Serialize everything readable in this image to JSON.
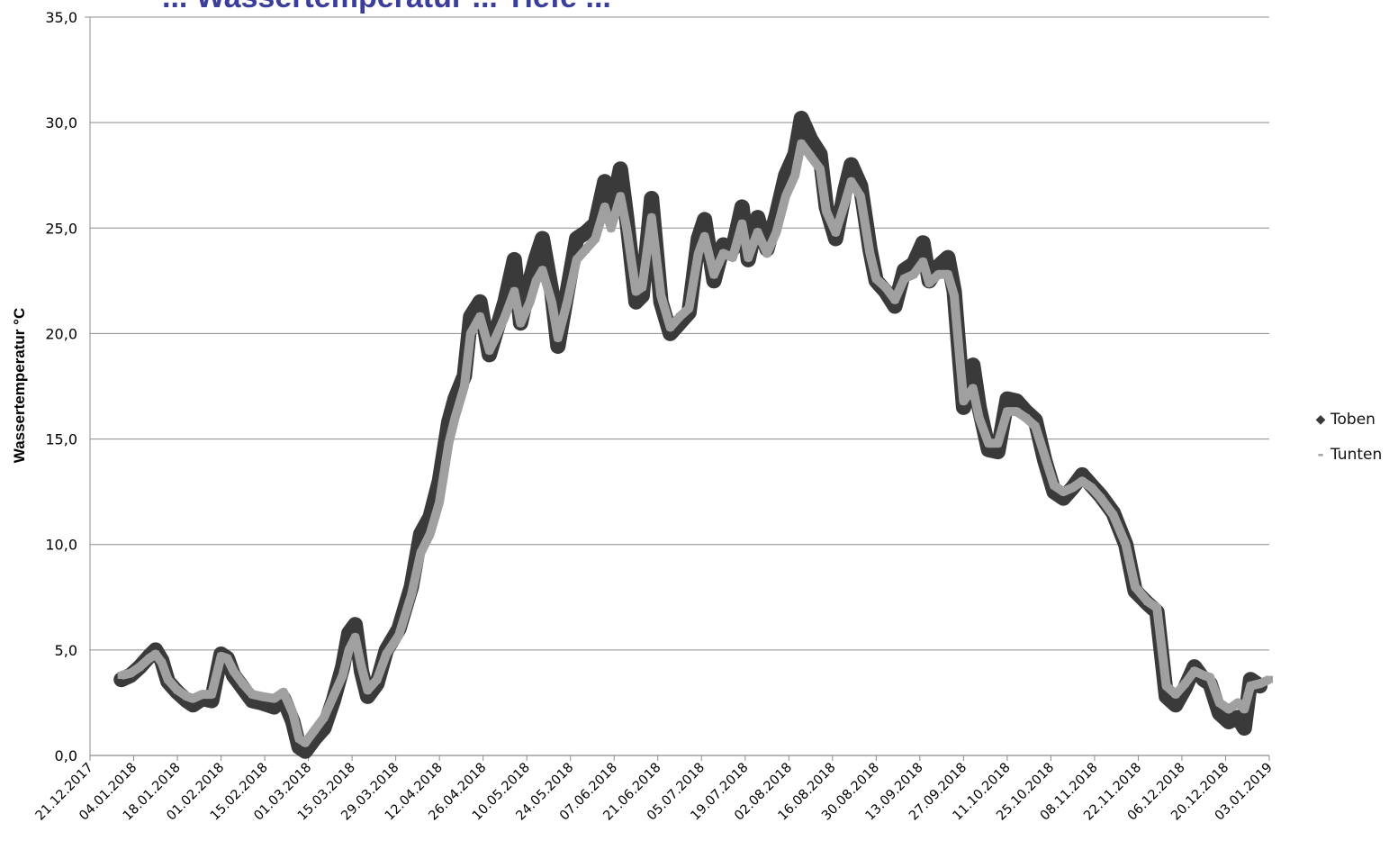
{
  "chart_data": {
    "type": "line",
    "title": "... Wassertemperatur ... Tiefe ...",
    "ylabel": "Wassertemperatur °C",
    "xlabel": "",
    "ylim": [
      0,
      35
    ],
    "yticks": [
      "0,0",
      "5,0",
      "10,0",
      "15,0",
      "20,0",
      "25,0",
      "30,0",
      "35,0"
    ],
    "xticks": [
      "21.12.2017",
      "04.01.2018",
      "18.01.2018",
      "01.02.2018",
      "15.02.2018",
      "01.03.2018",
      "15.03.2018",
      "29.03.2018",
      "12.04.2018",
      "26.04.2018",
      "10.05.2018",
      "24.05.2018",
      "07.06.2018",
      "21.06.2018",
      "05.07.2018",
      "19.07.2018",
      "02.08.2018",
      "16.08.2018",
      "30.08.2018",
      "13.09.2018",
      "27.09.2018",
      "11.10.2018",
      "25.10.2018",
      "08.11.2018",
      "22.11.2018",
      "06.12.2018",
      "20.12.2018",
      "03.01.2019"
    ],
    "x_range": [
      "2017-12-21",
      "2019-01-03"
    ],
    "grid": "horizontal",
    "legend_position": "right",
    "series": [
      {
        "name": "Toben",
        "color": "#3a3a3a",
        "marker": "diamond",
        "points": [
          [
            "2017-12-31",
            3.6
          ],
          [
            "2018-01-03",
            3.8
          ],
          [
            "2018-01-06",
            4.2
          ],
          [
            "2018-01-09",
            4.7
          ],
          [
            "2018-01-11",
            5.0
          ],
          [
            "2018-01-13",
            4.5
          ],
          [
            "2018-01-15",
            3.5
          ],
          [
            "2018-01-18",
            3.0
          ],
          [
            "2018-01-21",
            2.6
          ],
          [
            "2018-01-23",
            2.4
          ],
          [
            "2018-01-26",
            2.7
          ],
          [
            "2018-01-29",
            2.6
          ],
          [
            "2018-02-01",
            4.8
          ],
          [
            "2018-02-03",
            4.6
          ],
          [
            "2018-02-05",
            3.8
          ],
          [
            "2018-02-08",
            3.2
          ],
          [
            "2018-02-11",
            2.6
          ],
          [
            "2018-02-14",
            2.5
          ],
          [
            "2018-02-18",
            2.3
          ],
          [
            "2018-02-21",
            2.7
          ],
          [
            "2018-02-24",
            1.6
          ],
          [
            "2018-02-26",
            0.4
          ],
          [
            "2018-02-28",
            0.2
          ],
          [
            "2018-03-03",
            0.8
          ],
          [
            "2018-03-06",
            1.3
          ],
          [
            "2018-03-09",
            2.6
          ],
          [
            "2018-03-12",
            4.2
          ],
          [
            "2018-03-14",
            5.8
          ],
          [
            "2018-03-16",
            6.2
          ],
          [
            "2018-03-18",
            4.0
          ],
          [
            "2018-03-20",
            2.8
          ],
          [
            "2018-03-23",
            3.4
          ],
          [
            "2018-03-26",
            5.0
          ],
          [
            "2018-03-30",
            6.0
          ],
          [
            "2018-04-03",
            8.0
          ],
          [
            "2018-04-06",
            10.5
          ],
          [
            "2018-04-09",
            11.3
          ],
          [
            "2018-04-12",
            13.0
          ],
          [
            "2018-04-15",
            15.8
          ],
          [
            "2018-04-17",
            16.9
          ],
          [
            "2018-04-20",
            18.0
          ],
          [
            "2018-04-22",
            20.8
          ],
          [
            "2018-04-25",
            21.5
          ],
          [
            "2018-04-28",
            19.0
          ],
          [
            "2018-04-30",
            20.0
          ],
          [
            "2018-05-03",
            21.5
          ],
          [
            "2018-05-06",
            23.5
          ],
          [
            "2018-05-08",
            20.5
          ],
          [
            "2018-05-11",
            22.5
          ],
          [
            "2018-05-13",
            23.6
          ],
          [
            "2018-05-15",
            24.5
          ],
          [
            "2018-05-18",
            22.0
          ],
          [
            "2018-05-20",
            19.4
          ],
          [
            "2018-05-23",
            22.0
          ],
          [
            "2018-05-26",
            24.5
          ],
          [
            "2018-05-29",
            24.8
          ],
          [
            "2018-06-01",
            25.2
          ],
          [
            "2018-06-04",
            27.2
          ],
          [
            "2018-06-06",
            25.7
          ],
          [
            "2018-06-09",
            27.8
          ],
          [
            "2018-06-11",
            25.5
          ],
          [
            "2018-06-14",
            21.5
          ],
          [
            "2018-06-16",
            21.8
          ],
          [
            "2018-06-19",
            26.4
          ],
          [
            "2018-06-22",
            21.5
          ],
          [
            "2018-06-25",
            20.0
          ],
          [
            "2018-06-28",
            20.5
          ],
          [
            "2018-07-01",
            21.0
          ],
          [
            "2018-07-04",
            24.5
          ],
          [
            "2018-07-06",
            25.4
          ],
          [
            "2018-07-09",
            22.5
          ],
          [
            "2018-07-12",
            24.2
          ],
          [
            "2018-07-15",
            24.0
          ],
          [
            "2018-07-18",
            26.0
          ],
          [
            "2018-07-20",
            23.5
          ],
          [
            "2018-07-23",
            25.5
          ],
          [
            "2018-07-26",
            24.0
          ],
          [
            "2018-07-29",
            25.6
          ],
          [
            "2018-08-01",
            27.5
          ],
          [
            "2018-08-04",
            28.5
          ],
          [
            "2018-08-06",
            30.2
          ],
          [
            "2018-08-09",
            29.2
          ],
          [
            "2018-08-12",
            28.5
          ],
          [
            "2018-08-14",
            26.0
          ],
          [
            "2018-08-17",
            24.5
          ],
          [
            "2018-08-20",
            26.8
          ],
          [
            "2018-08-22",
            28.0
          ],
          [
            "2018-08-25",
            27.0
          ],
          [
            "2018-08-28",
            24.0
          ],
          [
            "2018-08-30",
            22.5
          ],
          [
            "2018-09-02",
            22.0
          ],
          [
            "2018-09-05",
            21.3
          ],
          [
            "2018-09-08",
            23.0
          ],
          [
            "2018-09-11",
            23.3
          ],
          [
            "2018-09-14",
            24.3
          ],
          [
            "2018-09-16",
            22.5
          ],
          [
            "2018-09-19",
            23.2
          ],
          [
            "2018-09-22",
            23.6
          ],
          [
            "2018-09-24",
            22.0
          ],
          [
            "2018-09-27",
            16.5
          ],
          [
            "2018-09-30",
            18.5
          ],
          [
            "2018-10-02",
            16.5
          ],
          [
            "2018-10-05",
            14.5
          ],
          [
            "2018-10-08",
            14.4
          ],
          [
            "2018-10-11",
            16.9
          ],
          [
            "2018-10-14",
            16.8
          ],
          [
            "2018-10-17",
            16.3
          ],
          [
            "2018-10-20",
            15.9
          ],
          [
            "2018-10-23",
            14.0
          ],
          [
            "2018-10-26",
            12.5
          ],
          [
            "2018-10-29",
            12.2
          ],
          [
            "2018-11-01",
            12.7
          ],
          [
            "2018-11-04",
            13.3
          ],
          [
            "2018-11-07",
            12.8
          ],
          [
            "2018-11-10",
            12.3
          ],
          [
            "2018-11-14",
            11.5
          ],
          [
            "2018-11-18",
            10.0
          ],
          [
            "2018-11-21",
            7.8
          ],
          [
            "2018-11-25",
            7.2
          ],
          [
            "2018-11-28",
            6.8
          ],
          [
            "2018-12-01",
            2.8
          ],
          [
            "2018-12-04",
            2.4
          ],
          [
            "2018-12-07",
            3.2
          ],
          [
            "2018-12-10",
            4.2
          ],
          [
            "2018-12-13",
            3.6
          ],
          [
            "2018-12-15",
            3.4
          ],
          [
            "2018-12-18",
            2.0
          ],
          [
            "2018-12-21",
            1.6
          ],
          [
            "2018-12-24",
            1.8
          ],
          [
            "2018-12-26",
            1.3
          ],
          [
            "2018-12-28",
            3.6
          ],
          [
            "2018-12-31",
            3.3
          ]
        ]
      },
      {
        "name": "Tunten",
        "color": "#a0a0a0",
        "marker": "dash",
        "points": [
          [
            "2017-12-31",
            3.8
          ],
          [
            "2018-01-03",
            3.9
          ],
          [
            "2018-01-06",
            4.2
          ],
          [
            "2018-01-09",
            4.6
          ],
          [
            "2018-01-11",
            4.8
          ],
          [
            "2018-01-13",
            4.4
          ],
          [
            "2018-01-15",
            3.6
          ],
          [
            "2018-01-18",
            3.1
          ],
          [
            "2018-01-21",
            2.8
          ],
          [
            "2018-01-23",
            2.7
          ],
          [
            "2018-01-26",
            2.9
          ],
          [
            "2018-01-29",
            2.9
          ],
          [
            "2018-02-01",
            4.7
          ],
          [
            "2018-02-03",
            4.6
          ],
          [
            "2018-02-05",
            4.0
          ],
          [
            "2018-02-08",
            3.4
          ],
          [
            "2018-02-11",
            2.9
          ],
          [
            "2018-02-14",
            2.8
          ],
          [
            "2018-02-18",
            2.7
          ],
          [
            "2018-02-21",
            3.0
          ],
          [
            "2018-02-24",
            2.0
          ],
          [
            "2018-02-26",
            0.8
          ],
          [
            "2018-02-28",
            0.6
          ],
          [
            "2018-03-03",
            1.2
          ],
          [
            "2018-03-06",
            1.8
          ],
          [
            "2018-03-09",
            2.8
          ],
          [
            "2018-03-12",
            3.8
          ],
          [
            "2018-03-14",
            5.0
          ],
          [
            "2018-03-16",
            5.6
          ],
          [
            "2018-03-18",
            4.2
          ],
          [
            "2018-03-20",
            3.1
          ],
          [
            "2018-03-23",
            3.6
          ],
          [
            "2018-03-26",
            4.8
          ],
          [
            "2018-03-30",
            5.7
          ],
          [
            "2018-04-03",
            7.6
          ],
          [
            "2018-04-06",
            9.6
          ],
          [
            "2018-04-09",
            10.5
          ],
          [
            "2018-04-12",
            12.0
          ],
          [
            "2018-04-15",
            14.8
          ],
          [
            "2018-04-17",
            16.0
          ],
          [
            "2018-04-20",
            17.5
          ],
          [
            "2018-04-22",
            20.0
          ],
          [
            "2018-04-25",
            20.8
          ],
          [
            "2018-04-28",
            19.2
          ],
          [
            "2018-04-30",
            19.8
          ],
          [
            "2018-05-03",
            20.8
          ],
          [
            "2018-05-06",
            22.0
          ],
          [
            "2018-05-08",
            20.5
          ],
          [
            "2018-05-11",
            21.5
          ],
          [
            "2018-05-13",
            22.5
          ],
          [
            "2018-05-15",
            23.0
          ],
          [
            "2018-05-18",
            21.5
          ],
          [
            "2018-05-20",
            19.8
          ],
          [
            "2018-05-23",
            21.5
          ],
          [
            "2018-05-26",
            23.5
          ],
          [
            "2018-05-29",
            24.0
          ],
          [
            "2018-06-01",
            24.5
          ],
          [
            "2018-06-04",
            26.0
          ],
          [
            "2018-06-06",
            25.0
          ],
          [
            "2018-06-09",
            26.5
          ],
          [
            "2018-06-11",
            25.0
          ],
          [
            "2018-06-14",
            22.0
          ],
          [
            "2018-06-16",
            22.2
          ],
          [
            "2018-06-19",
            25.5
          ],
          [
            "2018-06-22",
            21.8
          ],
          [
            "2018-06-25",
            20.3
          ],
          [
            "2018-06-28",
            20.8
          ],
          [
            "2018-07-01",
            21.2
          ],
          [
            "2018-07-04",
            23.8
          ],
          [
            "2018-07-06",
            24.6
          ],
          [
            "2018-07-09",
            22.8
          ],
          [
            "2018-07-12",
            23.8
          ],
          [
            "2018-07-15",
            23.6
          ],
          [
            "2018-07-18",
            25.2
          ],
          [
            "2018-07-20",
            23.6
          ],
          [
            "2018-07-23",
            24.8
          ],
          [
            "2018-07-26",
            23.8
          ],
          [
            "2018-07-29",
            24.8
          ],
          [
            "2018-08-01",
            26.5
          ],
          [
            "2018-08-04",
            27.5
          ],
          [
            "2018-08-06",
            29.0
          ],
          [
            "2018-08-09",
            28.4
          ],
          [
            "2018-08-12",
            27.8
          ],
          [
            "2018-08-14",
            25.8
          ],
          [
            "2018-08-17",
            24.8
          ],
          [
            "2018-08-20",
            26.2
          ],
          [
            "2018-08-22",
            27.2
          ],
          [
            "2018-08-25",
            26.5
          ],
          [
            "2018-08-28",
            23.8
          ],
          [
            "2018-08-30",
            22.6
          ],
          [
            "2018-09-02",
            22.2
          ],
          [
            "2018-09-05",
            21.6
          ],
          [
            "2018-09-08",
            22.6
          ],
          [
            "2018-09-11",
            22.8
          ],
          [
            "2018-09-14",
            23.4
          ],
          [
            "2018-09-16",
            22.4
          ],
          [
            "2018-09-19",
            22.8
          ],
          [
            "2018-09-22",
            22.8
          ],
          [
            "2018-09-24",
            21.8
          ],
          [
            "2018-09-27",
            16.8
          ],
          [
            "2018-09-30",
            17.4
          ],
          [
            "2018-10-02",
            16.0
          ],
          [
            "2018-10-05",
            14.8
          ],
          [
            "2018-10-08",
            14.8
          ],
          [
            "2018-10-11",
            16.3
          ],
          [
            "2018-10-14",
            16.3
          ],
          [
            "2018-10-17",
            16.0
          ],
          [
            "2018-10-20",
            15.6
          ],
          [
            "2018-10-23",
            14.2
          ],
          [
            "2018-10-26",
            12.8
          ],
          [
            "2018-10-29",
            12.5
          ],
          [
            "2018-11-01",
            12.7
          ],
          [
            "2018-11-04",
            13.0
          ],
          [
            "2018-11-07",
            12.7
          ],
          [
            "2018-11-10",
            12.2
          ],
          [
            "2018-11-14",
            11.4
          ],
          [
            "2018-11-18",
            10.0
          ],
          [
            "2018-11-21",
            8.0
          ],
          [
            "2018-11-25",
            7.3
          ],
          [
            "2018-11-28",
            7.0
          ],
          [
            "2018-12-01",
            3.3
          ],
          [
            "2018-12-04",
            2.9
          ],
          [
            "2018-12-07",
            3.4
          ],
          [
            "2018-12-10",
            4.0
          ],
          [
            "2018-12-13",
            3.8
          ],
          [
            "2018-12-15",
            3.7
          ],
          [
            "2018-12-18",
            2.5
          ],
          [
            "2018-12-21",
            2.2
          ],
          [
            "2018-12-24",
            2.5
          ],
          [
            "2018-12-26",
            2.2
          ],
          [
            "2018-12-28",
            3.3
          ],
          [
            "2018-12-31",
            3.4
          ],
          [
            "2019-01-03",
            3.6
          ]
        ]
      }
    ]
  }
}
